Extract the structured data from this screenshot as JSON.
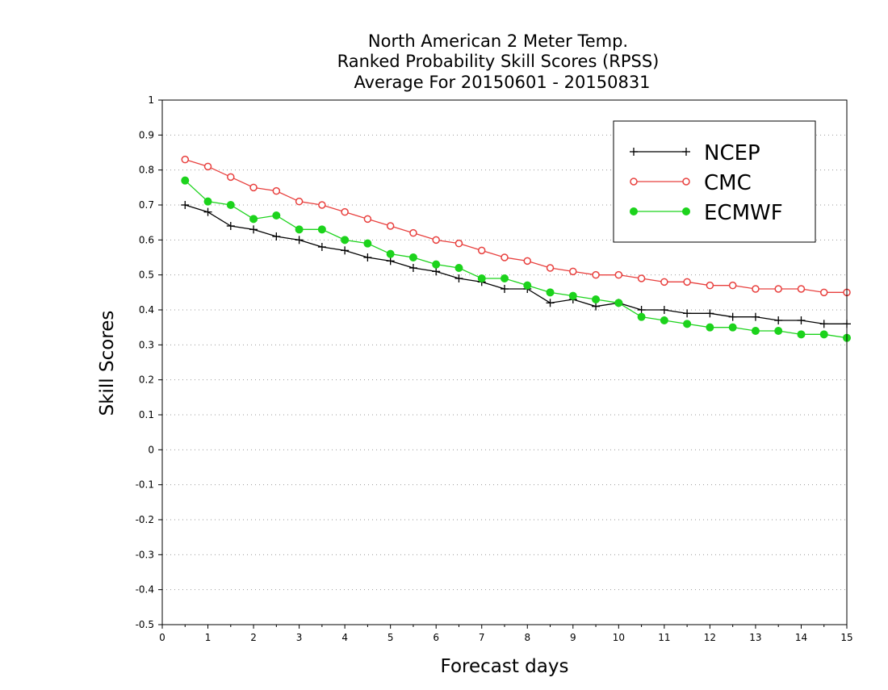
{
  "chart_data": {
    "type": "line",
    "title_lines": [
      "North American 2 Meter Temp.",
      "Ranked Probability Skill Scores (RPSS)",
      "Average For 20150601 - 20150831"
    ],
    "xlabel": "Forecast days",
    "ylabel": "Skill Scores",
    "xlim": [
      0,
      15
    ],
    "ylim": [
      -0.5,
      1
    ],
    "xticks": [
      0,
      1,
      2,
      3,
      4,
      5,
      6,
      7,
      8,
      9,
      10,
      11,
      12,
      13,
      14,
      15
    ],
    "yticks": [
      -0.5,
      -0.4,
      -0.3,
      -0.2,
      -0.1,
      0,
      0.1,
      0.2,
      0.3,
      0.4,
      0.5,
      0.6,
      0.7,
      0.8,
      0.9,
      1
    ],
    "ytick_labels": [
      "-0.5",
      "-0.4",
      "-0.3",
      "-0.2",
      "-0.1",
      "0",
      "0.1",
      "0.2",
      "0.3",
      "0.4",
      "0.5",
      "0.6",
      "0.7",
      "0.8",
      "0.9",
      "1"
    ],
    "grid": "horizontal-dotted",
    "legend_position": "top-right",
    "x": [
      0.5,
      1.0,
      1.5,
      2.0,
      2.5,
      3.0,
      3.5,
      4.0,
      4.5,
      5.0,
      5.5,
      6.0,
      6.5,
      7.0,
      7.5,
      8.0,
      8.5,
      9.0,
      9.5,
      10.0,
      10.5,
      11.0,
      11.5,
      12.0,
      12.5,
      13.0,
      13.5,
      14.0,
      14.5,
      15.0
    ],
    "series": [
      {
        "name": "NCEP",
        "color": "#000000",
        "marker": "plus",
        "values": [
          0.7,
          0.68,
          0.64,
          0.63,
          0.61,
          0.6,
          0.58,
          0.57,
          0.55,
          0.54,
          0.52,
          0.51,
          0.49,
          0.48,
          0.46,
          0.46,
          0.42,
          0.43,
          0.41,
          0.42,
          0.4,
          0.4,
          0.39,
          0.39,
          0.38,
          0.38,
          0.37,
          0.37,
          0.36,
          0.36
        ]
      },
      {
        "name": "CMC",
        "color": "#e8403e",
        "marker": "open-circle",
        "values": [
          0.83,
          0.81,
          0.78,
          0.75,
          0.74,
          0.71,
          0.7,
          0.68,
          0.66,
          0.64,
          0.62,
          0.6,
          0.59,
          0.57,
          0.55,
          0.54,
          0.52,
          0.51,
          0.5,
          0.5,
          0.49,
          0.48,
          0.48,
          0.47,
          0.47,
          0.46,
          0.46,
          0.46,
          0.45,
          0.45
        ]
      },
      {
        "name": "ECMWF",
        "color": "#1cd31c",
        "marker": "filled-circle",
        "values": [
          0.77,
          0.71,
          0.7,
          0.66,
          0.67,
          0.63,
          0.63,
          0.6,
          0.59,
          0.56,
          0.55,
          0.53,
          0.52,
          0.49,
          0.49,
          0.47,
          0.45,
          0.44,
          0.43,
          0.42,
          0.38,
          0.37,
          0.36,
          0.35,
          0.35,
          0.34,
          0.34,
          0.33,
          0.33,
          0.32
        ]
      }
    ]
  }
}
